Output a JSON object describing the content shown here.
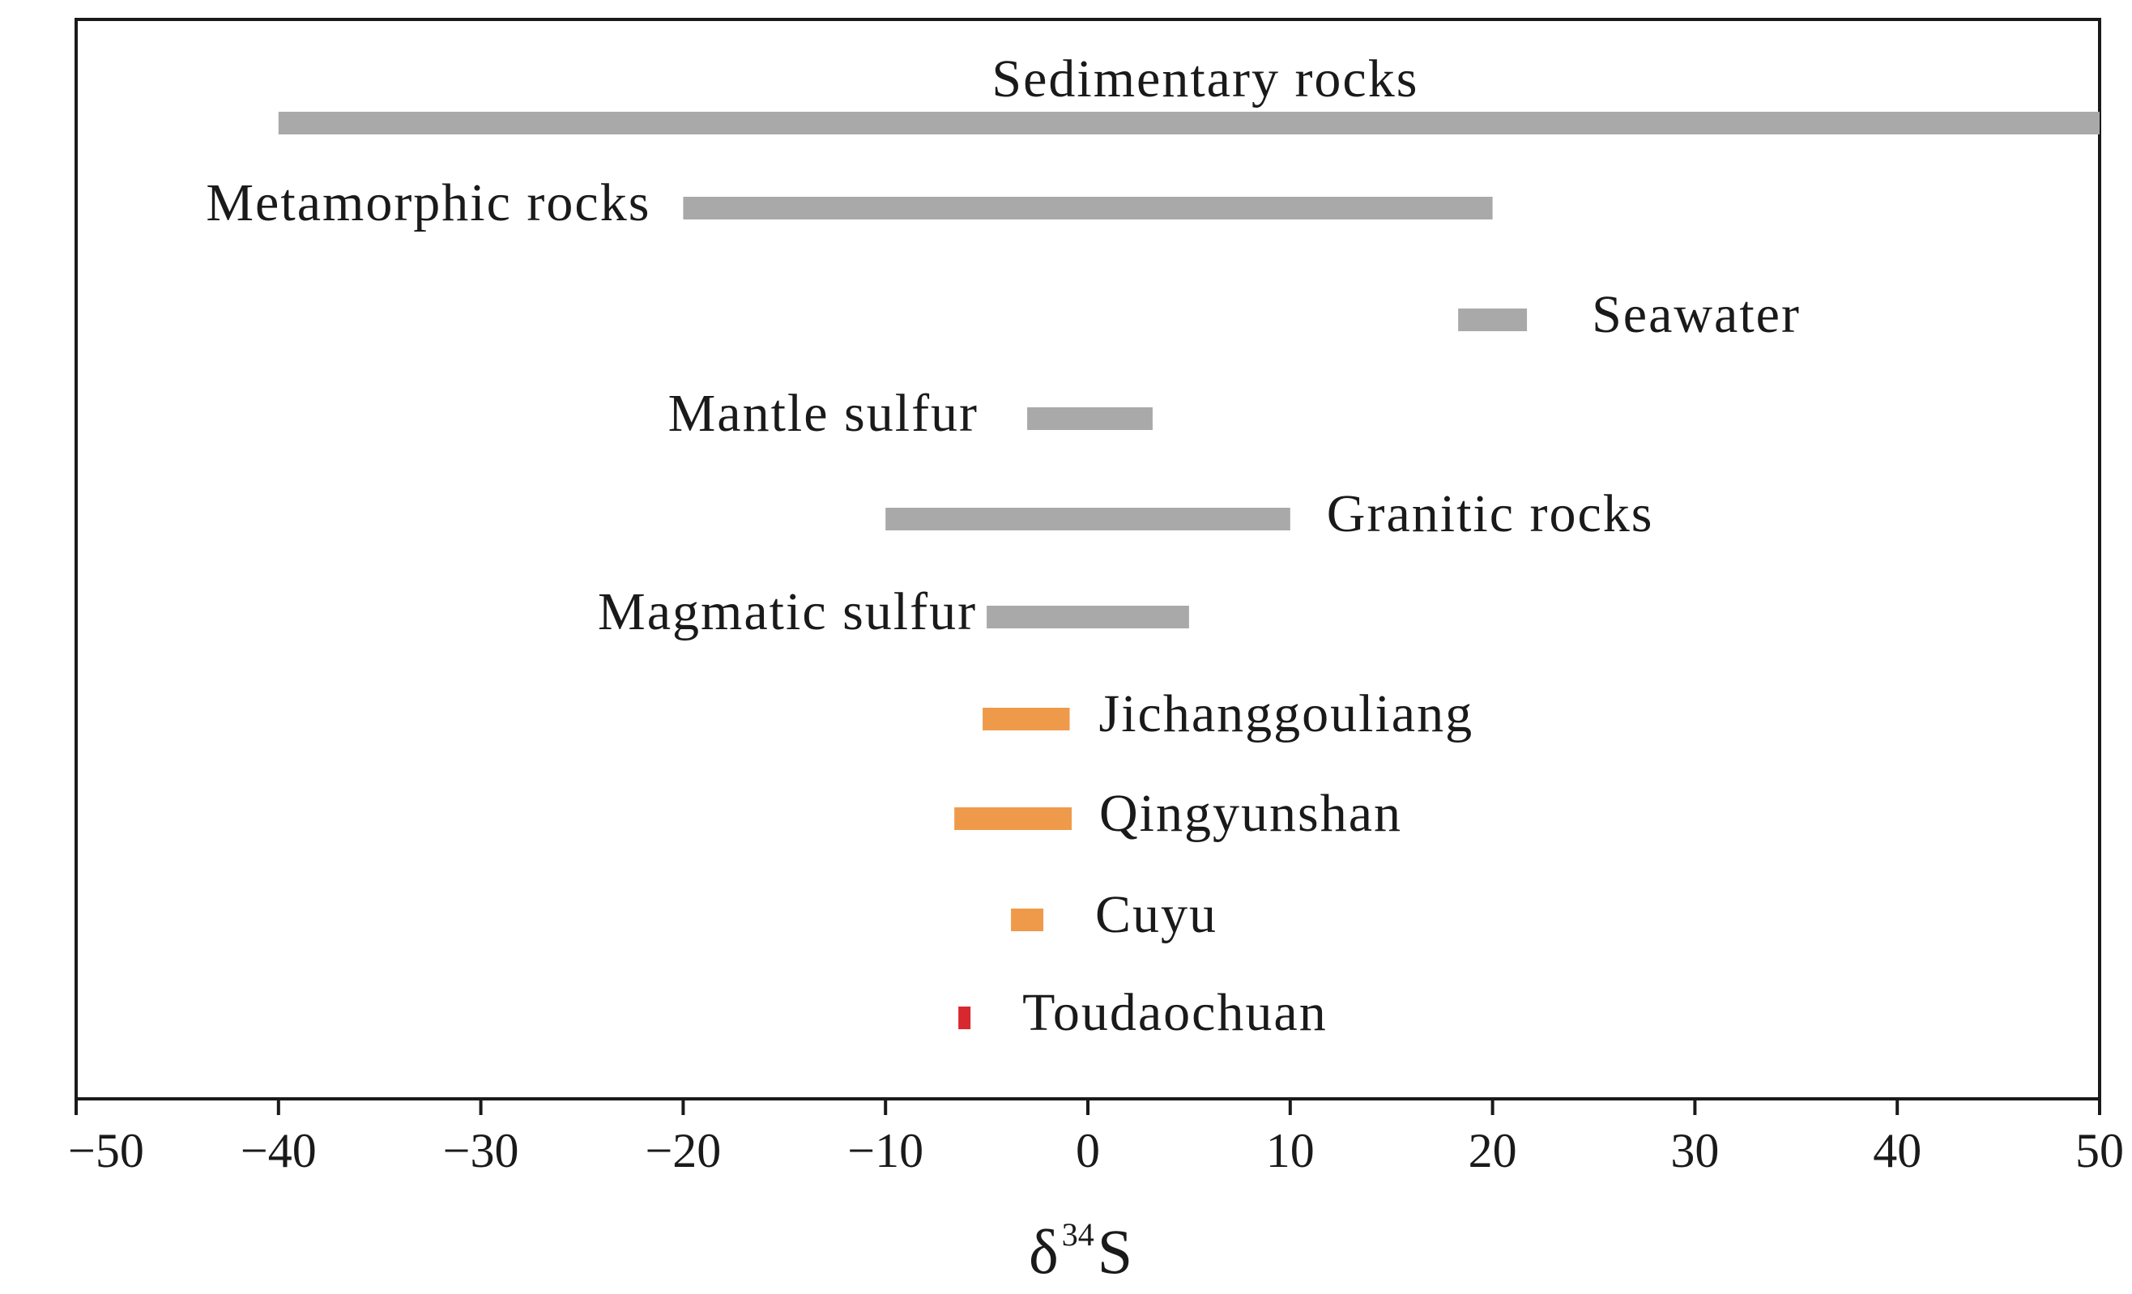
{
  "chart_data": {
    "type": "range-bar",
    "xlabel_main": "δ",
    "xlabel_sup": "34",
    "xlabel_tail": "S",
    "xlim": [
      -50,
      50
    ],
    "xticks": [
      -50,
      -40,
      -30,
      -20,
      -10,
      0,
      10,
      20,
      30,
      40,
      50
    ],
    "xtick_labels": [
      "−50",
      "−40",
      "−30",
      "−20",
      "−10",
      "0",
      "10",
      "20",
      "30",
      "40",
      "50"
    ],
    "ranges": [
      {
        "label": "Sedimentary rocks",
        "min": -40,
        "max": 50,
        "color": "#a9a9a9",
        "label_position": "above"
      },
      {
        "label": "Metamorphic rocks",
        "min": -20,
        "max": 20,
        "color": "#a9a9a9",
        "label_position": "left"
      },
      {
        "label": "Seawater",
        "min": 18.3,
        "max": 21.7,
        "color": "#a9a9a9",
        "label_position": "right"
      },
      {
        "label": "Mantle sulfur",
        "min": -3,
        "max": 3.2,
        "color": "#a9a9a9",
        "label_position": "left"
      },
      {
        "label": "Granitic rocks",
        "min": -10,
        "max": 10,
        "color": "#a9a9a9",
        "label_position": "right"
      },
      {
        "label": "Magmatic sulfur",
        "min": -5,
        "max": 5,
        "color": "#a9a9a9",
        "label_position": "left"
      },
      {
        "label": "Jichanggouliang",
        "min": -5.2,
        "max": -0.9,
        "color": "#ef9a4a",
        "label_position": "right"
      },
      {
        "label": "Qingyunshan",
        "min": -6.6,
        "max": -0.8,
        "color": "#ef9a4a",
        "label_position": "right"
      },
      {
        "label": "Cuyu",
        "min": -3.8,
        "max": -2.2,
        "color": "#ef9a4a",
        "label_position": "right"
      },
      {
        "label": "Toudaochuan",
        "min": -6.4,
        "max": -5.8,
        "color": "#d7282f",
        "label_position": "right"
      }
    ]
  }
}
